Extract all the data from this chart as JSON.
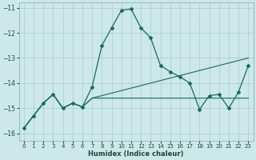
{
  "title": "",
  "xlabel": "Humidex (Indice chaleur)",
  "ylabel": "",
  "bg_color": "#cce8e8",
  "grid_color": "#aacccc",
  "line_color": "#1a6b5a",
  "x_values": [
    0,
    1,
    2,
    3,
    4,
    5,
    6,
    7,
    8,
    9,
    10,
    11,
    12,
    13,
    14,
    15,
    16,
    17,
    18,
    19,
    20,
    21,
    22,
    23
  ],
  "series_main": [
    -15.8,
    -15.3,
    -14.8,
    -14.45,
    -15.0,
    -14.8,
    -14.95,
    -14.15,
    -12.5,
    -11.8,
    -11.1,
    -11.05,
    -11.8,
    -12.2,
    -13.3,
    -13.55,
    -13.75,
    -14.0,
    -15.05,
    -14.5,
    -14.45,
    -15.0,
    -14.35,
    -13.3
  ],
  "series_flat": [
    -15.8,
    -15.3,
    -14.8,
    -14.45,
    -15.0,
    -14.8,
    -14.95,
    -14.6,
    -14.6,
    -14.6,
    -14.6,
    -14.6,
    -14.6,
    -14.6,
    -14.6,
    -14.6,
    -14.6,
    -14.6,
    -14.6,
    -14.6,
    -14.6,
    -14.6,
    -14.6,
    -14.6
  ],
  "series_trend": [
    -15.8,
    -15.3,
    -14.8,
    -14.45,
    -15.0,
    -14.8,
    -14.95,
    -14.6,
    -14.5,
    -14.4,
    -14.3,
    -14.2,
    -14.1,
    -14.0,
    -13.9,
    -13.8,
    -13.7,
    -13.6,
    -13.5,
    -13.4,
    -13.3,
    -13.2,
    -13.1,
    -13.0
  ],
  "ylim": [
    -16.3,
    -10.8
  ],
  "xlim": [
    -0.5,
    23.5
  ],
  "yticks": [
    -16,
    -15,
    -14,
    -13,
    -12,
    -11
  ],
  "xticks": [
    0,
    1,
    2,
    3,
    4,
    5,
    6,
    7,
    8,
    9,
    10,
    11,
    12,
    13,
    14,
    15,
    16,
    17,
    18,
    19,
    20,
    21,
    22,
    23
  ]
}
